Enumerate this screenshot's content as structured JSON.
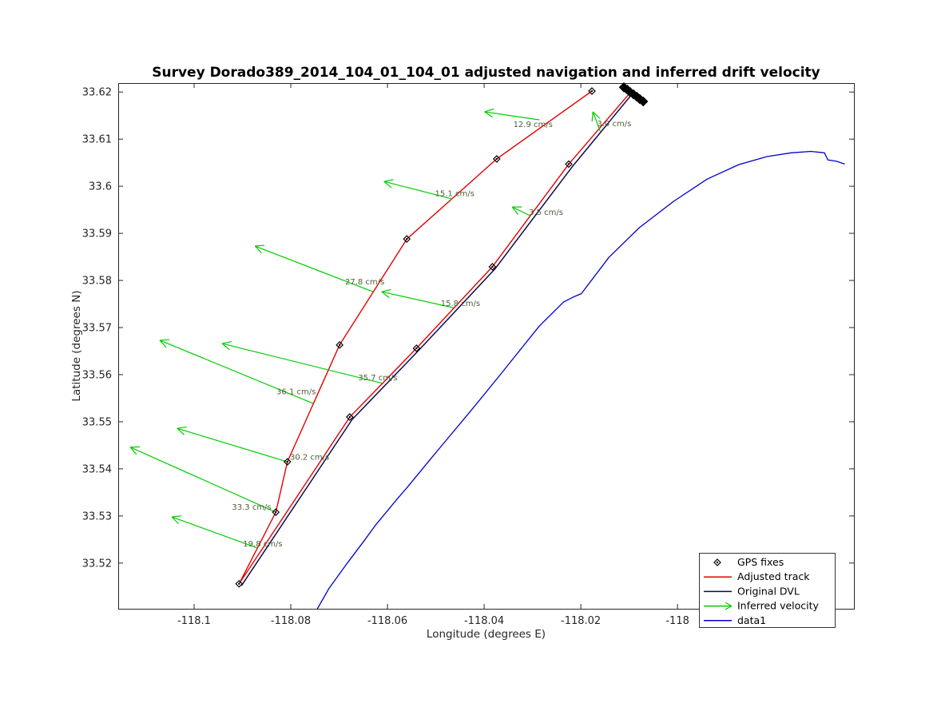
{
  "chart_data": {
    "type": "line",
    "title": "Survey Dorado389_2014_104_01_104_01 adjusted navigation and inferred drift velocity",
    "xlabel": "Longitude (degrees E)",
    "ylabel": "Latitude (degrees N)",
    "xlim": [
      -118.1157,
      -117.9635
    ],
    "ylim": [
      33.5103,
      33.6219
    ],
    "grid": false,
    "x_ticks": [
      -118.1,
      -118.08,
      -118.06,
      -118.04,
      -118.02,
      -118
    ],
    "x_tick_labels": [
      "-118.1",
      "-118.08",
      "-118.06",
      "-118.04",
      "-118.02",
      "-118"
    ],
    "y_ticks": [
      33.52,
      33.53,
      33.54,
      33.55,
      33.56,
      33.57,
      33.58,
      33.59,
      33.6,
      33.61,
      33.62
    ],
    "y_tick_labels": [
      "33.52",
      "33.53",
      "33.54",
      "33.55",
      "33.56",
      "33.57",
      "33.58",
      "33.59",
      "33.6",
      "33.61",
      "33.62"
    ],
    "colors": {
      "adjusted_track": "#e60000",
      "original_dvl": "#0b0b50",
      "data1": "#0000cc",
      "velocity": "#00cc00",
      "velocity_label": "#4f5d3a",
      "axis": "#262626",
      "marker": "#000000"
    },
    "series": {
      "adjusted_track": {
        "name": "Adjusted track",
        "points": [
          [
            -118.0177,
            33.6202
          ],
          [
            -118.0374,
            33.6058
          ],
          [
            -118.056,
            33.5888
          ],
          [
            -118.0699,
            33.5663
          ],
          [
            -118.0807,
            33.5415
          ],
          [
            -118.0831,
            33.5308
          ],
          [
            -118.0907,
            33.5156
          ],
          [
            -118.0678,
            33.551
          ],
          [
            -118.054,
            33.5656
          ],
          [
            -118.0383,
            33.5829
          ],
          [
            -118.0225,
            33.6047
          ],
          [
            -118.0101,
            33.6195
          ],
          [
            -118.0071,
            33.618
          ]
        ]
      },
      "original_dvl": {
        "name": "Original DVL",
        "points": [
          [
            -118.0089,
            33.6202
          ],
          [
            -118.0218,
            33.6041
          ],
          [
            -118.0378,
            33.5824
          ],
          [
            -118.0536,
            33.5651
          ],
          [
            -118.0673,
            33.5505
          ],
          [
            -118.0902,
            33.5152
          ]
        ]
      },
      "data1": {
        "name": "data1",
        "points": [
          [
            -118.0745,
            33.5103
          ],
          [
            -118.0721,
            33.5146
          ],
          [
            -118.0695,
            33.5183
          ],
          [
            -118.0683,
            33.52
          ],
          [
            -118.065,
            33.5245
          ],
          [
            -118.0625,
            33.528
          ],
          [
            -118.058,
            33.5336
          ],
          [
            -118.0559,
            33.5361
          ],
          [
            -118.051,
            33.5422
          ],
          [
            -118.0488,
            33.5449
          ],
          [
            -118.044,
            33.5508
          ],
          [
            -118.0415,
            33.5539
          ],
          [
            -118.0368,
            33.5598
          ],
          [
            -118.0344,
            33.5629
          ],
          [
            -118.0286,
            33.5703
          ],
          [
            -118.0236,
            33.5754
          ],
          [
            -118.0213,
            33.5766
          ],
          [
            -118.0199,
            33.5772
          ],
          [
            -118.0142,
            33.5849
          ],
          [
            -118.0079,
            33.5912
          ],
          [
            -118.0008,
            33.5968
          ],
          [
            -117.9939,
            33.6015
          ],
          [
            -117.9873,
            33.6046
          ],
          [
            -117.9815,
            33.6063
          ],
          [
            -117.9765,
            33.6071
          ],
          [
            -117.9724,
            33.6074
          ],
          [
            -117.9696,
            33.6071
          ],
          [
            -117.9689,
            33.6056
          ],
          [
            -117.9671,
            33.6053
          ],
          [
            -117.9654,
            33.6047
          ]
        ]
      },
      "gps_fixes": {
        "name": "GPS fixes",
        "points": [
          [
            -118.0177,
            33.6202
          ],
          [
            -118.0374,
            33.6058
          ],
          [
            -118.056,
            33.5888
          ],
          [
            -118.0699,
            33.5663
          ],
          [
            -118.0807,
            33.5415
          ],
          [
            -118.0831,
            33.5308
          ],
          [
            -118.0907,
            33.5156
          ],
          [
            -118.0678,
            33.551
          ],
          [
            -118.054,
            33.5656
          ],
          [
            -118.0383,
            33.5829
          ],
          [
            -118.0225,
            33.6047
          ]
        ],
        "cluster": [
          [
            -118.0111,
            33.621
          ],
          [
            -118.0104,
            33.6205
          ],
          [
            -118.0098,
            33.62
          ],
          [
            -118.0091,
            33.6195
          ],
          [
            -118.0084,
            33.619
          ],
          [
            -118.0078,
            33.6185
          ],
          [
            -118.0071,
            33.618
          ]
        ]
      },
      "velocity_arrows": [
        {
          "label": "12.9 cm/s",
          "start": [
            -118.0286,
            33.6141
          ],
          "tip": [
            -118.0399,
            33.6158
          ],
          "label_pos": [
            -118.0299,
            33.6126
          ]
        },
        {
          "label": "3.0 cm/s",
          "start": [
            -118.016,
            33.6117
          ],
          "tip": [
            -118.0175,
            33.6158
          ],
          "label_pos": [
            -118.0131,
            33.6127
          ]
        },
        {
          "label": "15.1 cm/s",
          "start": [
            -118.0466,
            33.5973
          ],
          "tip": [
            -118.0607,
            33.601
          ],
          "label_pos": [
            -118.0461,
            33.5979
          ]
        },
        {
          "label": "3.5 cm/s",
          "start": [
            -118.0304,
            33.5937
          ],
          "tip": [
            -118.0342,
            33.5956
          ],
          "label_pos": [
            -118.0272,
            33.5939
          ]
        },
        {
          "label": "27.8 cm/s",
          "start": [
            -118.063,
            33.5776
          ],
          "tip": [
            -118.0874,
            33.5873
          ],
          "label_pos": [
            -118.0647,
            33.5792
          ]
        },
        {
          "label": "15.8 cm/s",
          "start": [
            -118.0463,
            33.5742
          ],
          "tip": [
            -118.0612,
            33.5776
          ],
          "label_pos": [
            -118.0449,
            33.5746
          ]
        },
        {
          "label": "36.1 cm/s",
          "start": [
            -118.0754,
            33.5539
          ],
          "tip": [
            -118.1071,
            33.5673
          ],
          "label_pos": [
            -118.0789,
            33.5558
          ]
        },
        {
          "label": "35.7 cm/s",
          "start": [
            -118.0608,
            33.5581
          ],
          "tip": [
            -118.0942,
            33.5666
          ],
          "label_pos": [
            -118.062,
            33.5588
          ]
        },
        {
          "label": "30.2 cm/s",
          "start": [
            -118.0807,
            33.5415
          ],
          "tip": [
            -118.1035,
            33.5486
          ],
          "label_pos": [
            -118.0761,
            33.5419
          ]
        },
        {
          "label": "33.3 cm/s",
          "start": [
            -118.0831,
            33.5308
          ],
          "tip": [
            -118.1132,
            33.5446
          ],
          "label_pos": [
            -118.0881,
            33.5313
          ]
        },
        {
          "label": "19.8 cm/s",
          "start": [
            -118.0869,
            33.5232
          ],
          "tip": [
            -118.1046,
            33.5298
          ],
          "label_pos": [
            -118.0858,
            33.5235
          ]
        }
      ]
    },
    "legend": {
      "position": "bottom-right",
      "items": [
        {
          "label": "GPS fixes",
          "type": "marker",
          "color": "#000000"
        },
        {
          "label": "Adjusted track",
          "type": "line",
          "color": "#e60000"
        },
        {
          "label": "Original DVL",
          "type": "line",
          "color": "#0b0b50"
        },
        {
          "label": "Inferred velocity",
          "type": "arrow",
          "color": "#00cc00"
        },
        {
          "label": "data1",
          "type": "line",
          "color": "#0000cc"
        }
      ]
    }
  }
}
